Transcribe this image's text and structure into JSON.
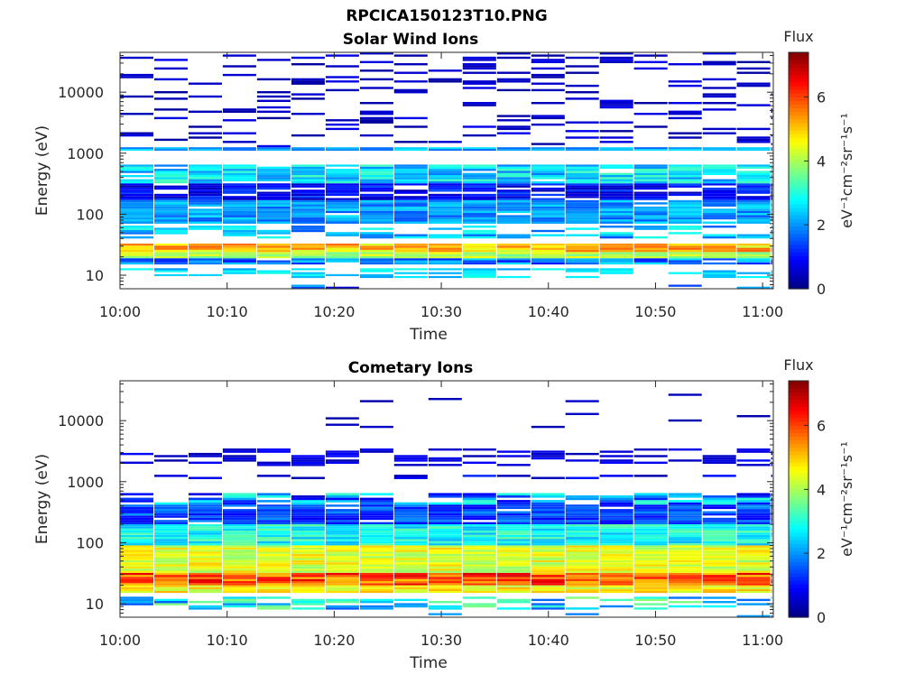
{
  "figure": {
    "title": "RPCICA150123T10.PNG"
  },
  "colorbar": {
    "label_top": "Flux",
    "unit_label": "eV⁻¹cm⁻²sr⁻¹s⁻¹",
    "ticks": [
      "0",
      "2",
      "4",
      "6"
    ],
    "range": [
      0,
      7.4
    ],
    "colormap": "jet"
  },
  "chart_data": [
    {
      "type": "heatmap",
      "title": "Solar Wind Ions",
      "xlabel": "Time",
      "ylabel": "Energy (eV)",
      "x_ticks": [
        "10:00",
        "10:10",
        "10:20",
        "10:30",
        "10:40",
        "10:50",
        "11:00"
      ],
      "x_range": [
        "10:00",
        "11:01"
      ],
      "y_ticks": [
        "10",
        "100",
        "1000",
        "10000"
      ],
      "y_range": [
        6,
        45000
      ],
      "y_scale": "log",
      "time_step_seconds": 192,
      "bands": [
        {
          "e_low": 6,
          "e_high": 7,
          "flux_min": 0.5,
          "flux_max": 2.3,
          "coverage": 0.12
        },
        {
          "e_low": 9,
          "e_high": 13,
          "flux_min": 2.0,
          "flux_max": 3.0,
          "coverage": 0.45
        },
        {
          "e_low": 15,
          "e_high": 19,
          "flux_min": 1.0,
          "flux_max": 2.6,
          "coverage": 0.95
        },
        {
          "e_low": 19,
          "e_high": 24,
          "flux_min": 3.5,
          "flux_max": 4.6,
          "coverage": 1.0
        },
        {
          "e_low": 24,
          "e_high": 33,
          "flux_min": 4.2,
          "flux_max": 5.8,
          "coverage": 1.0
        },
        {
          "e_low": 40,
          "e_high": 65,
          "flux_min": 1.5,
          "flux_max": 3.0,
          "coverage": 0.55
        },
        {
          "e_low": 70,
          "e_high": 170,
          "flux_min": 1.5,
          "flux_max": 2.6,
          "coverage": 0.95
        },
        {
          "e_low": 170,
          "e_high": 320,
          "flux_min": 0.4,
          "flux_max": 1.5,
          "coverage": 0.85
        },
        {
          "e_low": 320,
          "e_high": 650,
          "flux_min": 1.8,
          "flux_max": 3.3,
          "coverage": 0.9
        },
        {
          "e_low": 1100,
          "e_high": 1250,
          "flux_min": 1.6,
          "flux_max": 2.6,
          "coverage": 1.0
        },
        {
          "e_low": 1250,
          "e_high": 45000,
          "flux_min": 0.2,
          "flux_max": 0.8,
          "coverage": 0.22
        }
      ]
    },
    {
      "type": "heatmap",
      "title": "Cometary Ions",
      "xlabel": "Time",
      "ylabel": "Energy (eV)",
      "x_ticks": [
        "10:00",
        "10:10",
        "10:20",
        "10:30",
        "10:40",
        "10:50",
        "11:00"
      ],
      "x_range": [
        "10:00",
        "11:01"
      ],
      "y_ticks": [
        "10",
        "100",
        "1000",
        "10000"
      ],
      "y_range": [
        6,
        45000
      ],
      "y_scale": "log",
      "time_step_seconds": 192,
      "bands": [
        {
          "e_low": 6,
          "e_high": 7,
          "flux_min": 1.5,
          "flux_max": 2.3,
          "coverage": 0.08
        },
        {
          "e_low": 8,
          "e_high": 13,
          "flux_min": 1.5,
          "flux_max": 3.8,
          "coverage": 0.55
        },
        {
          "e_low": 15,
          "e_high": 20,
          "flux_min": 4.0,
          "flux_max": 5.2,
          "coverage": 1.0
        },
        {
          "e_low": 20,
          "e_high": 32,
          "flux_min": 5.0,
          "flux_max": 6.8,
          "coverage": 1.0
        },
        {
          "e_low": 32,
          "e_high": 90,
          "flux_min": 3.8,
          "flux_max": 5.0,
          "coverage": 1.0
        },
        {
          "e_low": 90,
          "e_high": 200,
          "flux_min": 2.2,
          "flux_max": 3.5,
          "coverage": 1.0
        },
        {
          "e_low": 200,
          "e_high": 420,
          "flux_min": 0.8,
          "flux_max": 2.0,
          "coverage": 0.95
        },
        {
          "e_low": 420,
          "e_high": 650,
          "flux_min": 0.6,
          "flux_max": 3.2,
          "coverage": 0.7
        },
        {
          "e_low": 1100,
          "e_high": 1300,
          "flux_min": 0.3,
          "flux_max": 1.3,
          "coverage": 0.45
        },
        {
          "e_low": 1800,
          "e_high": 3500,
          "flux_min": 0.3,
          "flux_max": 1.0,
          "coverage": 0.4
        },
        {
          "e_low": 7000,
          "e_high": 30000,
          "flux_min": 0.3,
          "flux_max": 0.6,
          "coverage": 0.03
        }
      ]
    }
  ]
}
